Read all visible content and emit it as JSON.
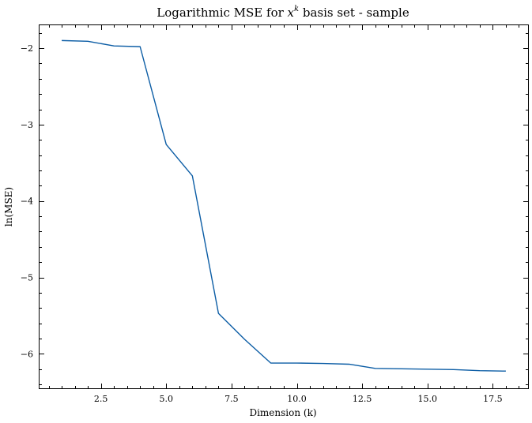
{
  "chart_data": {
    "type": "line",
    "title_prefix": "Logarithmic MSE for ",
    "title_var": "x",
    "title_exp": "k",
    "title_suffix": " basis set - sample",
    "xlabel": "Dimension (k)",
    "ylabel": "ln(MSE)",
    "xlim": [
      0.15,
      18.85
    ],
    "ylim": [
      -6.45,
      -1.7
    ],
    "x_major_ticks": [
      2.5,
      5.0,
      7.5,
      10.0,
      12.5,
      15.0,
      17.5
    ],
    "x_tick_labels": [
      "2.5",
      "5.0",
      "7.5",
      "10.0",
      "12.5",
      "15.0",
      "17.5"
    ],
    "y_major_ticks": [
      -6,
      -5,
      -4,
      -3,
      -2
    ],
    "y_tick_labels": [
      "−6",
      "−5",
      "−4",
      "−3",
      "−2"
    ],
    "grid": false,
    "line_color": "#0c5da5",
    "series": [
      {
        "x": [
          1,
          2,
          3,
          4,
          5,
          6,
          7,
          8,
          9,
          10,
          11,
          12,
          13,
          14,
          15,
          16,
          17,
          18
        ],
        "y": [
          -1.9,
          -1.91,
          -1.97,
          -1.98,
          -3.26,
          -3.67,
          -5.47,
          -5.81,
          -6.12,
          -6.12,
          -6.125,
          -6.135,
          -6.19,
          -6.195,
          -6.2,
          -6.205,
          -6.22,
          -6.225
        ]
      }
    ]
  }
}
